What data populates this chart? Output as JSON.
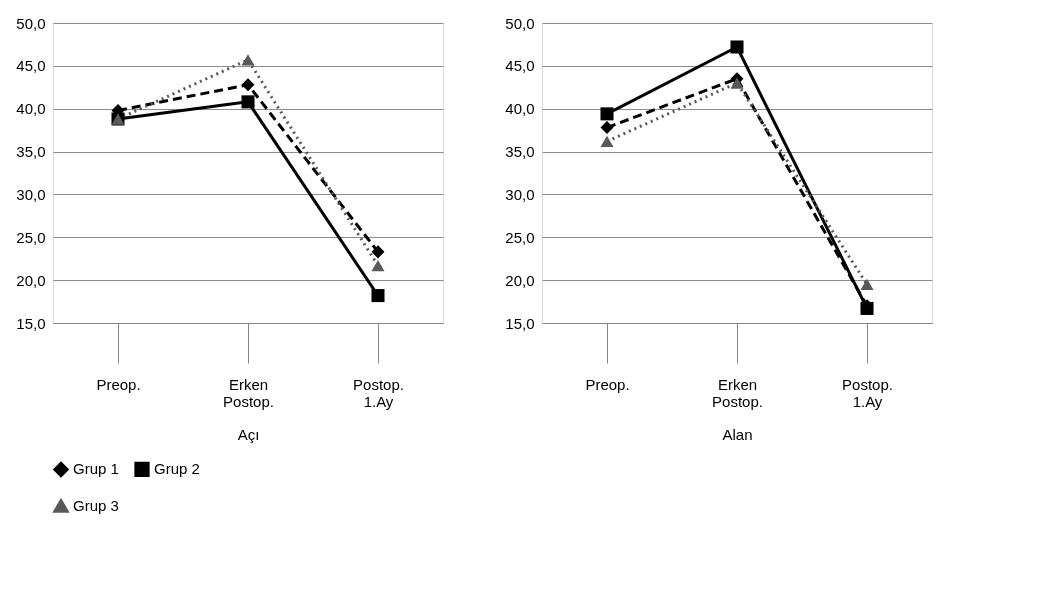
{
  "chart_data": [
    {
      "type": "line",
      "categories": [
        "Preop.",
        "Erken Postop.",
        "Postop. 1.Ay"
      ],
      "xlabel": "Açı",
      "ylim": [
        15,
        50
      ],
      "yticks": [
        {
          "value": 15,
          "label": "15,0"
        },
        {
          "value": 20,
          "label": "20,0"
        },
        {
          "value": 25,
          "label": "25,0"
        },
        {
          "value": 30,
          "label": "30,0"
        },
        {
          "value": 35,
          "label": "35,0"
        },
        {
          "value": 40,
          "label": "40,0"
        },
        {
          "value": 45,
          "label": "45,0"
        },
        {
          "value": 50,
          "label": "50,0"
        }
      ],
      "grid": "y",
      "legend": "bottom",
      "series": [
        {
          "name": "Grup 1",
          "color": "#000000",
          "line_style": "dashed",
          "marker": "diamond",
          "values": [
            39.8,
            42.8,
            23.3
          ]
        },
        {
          "name": "Grup 2",
          "color": "#000000",
          "line_style": "solid",
          "marker": "square",
          "values": [
            38.8,
            40.8,
            18.2
          ]
        },
        {
          "name": "Grup 3",
          "color": "#595959",
          "line_style": "dotted",
          "marker": "triangle",
          "values": [
            38.8,
            45.7,
            21.7
          ]
        }
      ]
    },
    {
      "type": "line",
      "categories": [
        "Preop.",
        "Erken Postop.",
        "Postop. 1.Ay"
      ],
      "xlabel": "Alan",
      "ylim": [
        15,
        50
      ],
      "yticks": [
        {
          "value": 15,
          "label": "15,0"
        },
        {
          "value": 20,
          "label": "20,0"
        },
        {
          "value": 25,
          "label": "25,0"
        },
        {
          "value": 30,
          "label": "30,0"
        },
        {
          "value": 35,
          "label": "35,0"
        },
        {
          "value": 40,
          "label": "40,0"
        },
        {
          "value": 45,
          "label": "45,0"
        },
        {
          "value": 50,
          "label": "50,0"
        }
      ],
      "grid": "y",
      "legend": "bottom",
      "series": [
        {
          "name": "Grup 1",
          "color": "#000000",
          "line_style": "dashed",
          "marker": "diamond",
          "values": [
            37.8,
            43.5,
            17.0
          ]
        },
        {
          "name": "Grup 2",
          "color": "#000000",
          "line_style": "solid",
          "marker": "square",
          "values": [
            39.4,
            47.2,
            16.7
          ]
        },
        {
          "name": "Grup 3",
          "color": "#595959",
          "line_style": "dotted",
          "marker": "triangle",
          "values": [
            36.2,
            43.0,
            19.5
          ]
        }
      ]
    }
  ]
}
